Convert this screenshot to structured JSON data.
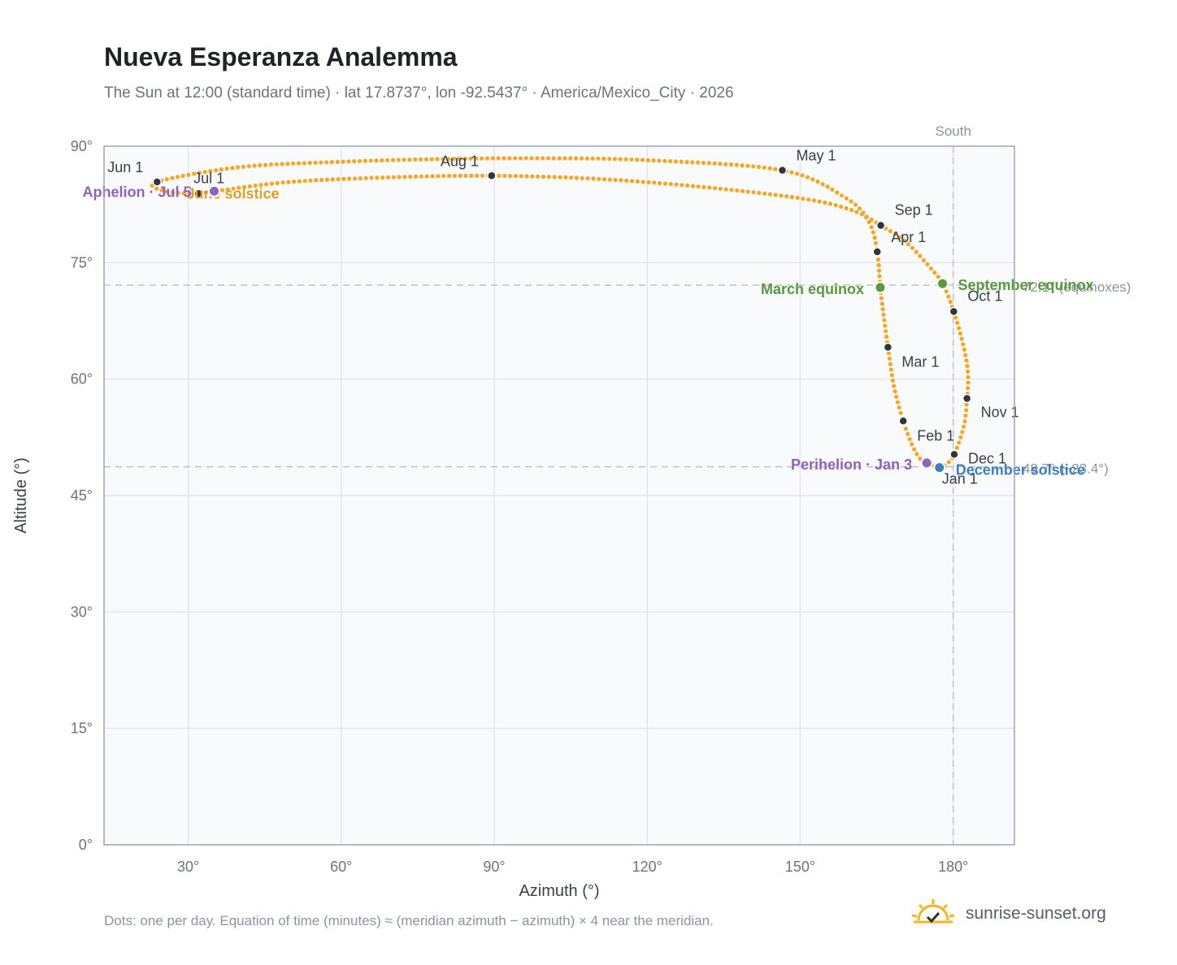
{
  "title": "Nueva Esperanza Analemma",
  "subtitle": "The Sun at 12:00 (standard time) · lat 17.8737°, lon -92.5437° · America/Mexico_City · 2026",
  "footnote": "Dots: one per day. Equation of time (minutes) ≈ (meridian azimuth − azimuth) × 4 near the meridian.",
  "brand": {
    "text": "sunrise-sunset.org",
    "icon": "sun-check-icon"
  },
  "chart_data": {
    "type": "scatter",
    "xlabel": "Azimuth (°)",
    "ylabel": "Altitude (°)",
    "xlim": [
      13.5,
      192
    ],
    "ylim": [
      0,
      90
    ],
    "xticks": [
      30,
      60,
      90,
      120,
      150,
      180
    ],
    "yticks": [
      0,
      15,
      30,
      45,
      60,
      75,
      90
    ],
    "xtick_labels": [
      "30°",
      "60°",
      "90°",
      "120°",
      "150°",
      "180°"
    ],
    "ytick_labels": [
      "0°",
      "15°",
      "30°",
      "45°",
      "60°",
      "75°",
      "90°"
    ],
    "grid": true,
    "colors": {
      "path": "#f5a623",
      "month": "#2f353d",
      "equinox": "#5a9a3a",
      "solstice_dec": "#3d7fc1",
      "solstice_jun": "#d7a12a",
      "apsis": "#8e63b8",
      "refline": "#b8c6d2",
      "plot_bg": "#f8fafc",
      "frame": "#9aa7b4"
    },
    "reference_lines": [
      {
        "axis": "x",
        "value": 180,
        "label": "South"
      },
      {
        "axis": "y",
        "value": 72.1,
        "label": "72.1° (equinoxes)"
      },
      {
        "axis": "y",
        "value": 48.7,
        "label": "48.7° (−23.4°)"
      }
    ],
    "month_markers": [
      {
        "label": "Jan 1",
        "az": 177.3,
        "alt": 48.6
      },
      {
        "label": "Feb 1",
        "az": 170.2,
        "alt": 54.6
      },
      {
        "label": "Mar 1",
        "az": 167.2,
        "alt": 64.1
      },
      {
        "label": "Apr 1",
        "az": 165.1,
        "alt": 76.4
      },
      {
        "label": "May 1",
        "az": 146.5,
        "alt": 86.9
      },
      {
        "label": "Jun 1",
        "az": 23.9,
        "alt": 85.4
      },
      {
        "label": "Jul 1",
        "az": 32.0,
        "alt": 83.9
      },
      {
        "label": "Aug 1",
        "az": 89.5,
        "alt": 86.2
      },
      {
        "label": "Sep 1",
        "az": 165.8,
        "alt": 79.8
      },
      {
        "label": "Oct 1",
        "az": 180.1,
        "alt": 68.7
      },
      {
        "label": "Nov 1",
        "az": 182.7,
        "alt": 57.5
      },
      {
        "label": "Dec 1",
        "az": 180.2,
        "alt": 50.3
      }
    ],
    "events": [
      {
        "label": "March equinox",
        "az": 165.7,
        "alt": 71.8,
        "kind": "equinox"
      },
      {
        "label": "September equinox",
        "az": 177.9,
        "alt": 72.3,
        "kind": "equinox"
      },
      {
        "label": "June solstice",
        "az": 35.1,
        "alt": 84.2,
        "kind": "solstice_jun"
      },
      {
        "label": "December solstice",
        "az": 177.3,
        "alt": 48.6,
        "kind": "solstice_dec"
      },
      {
        "label": "Aphelion · Jul 5",
        "az": 35.1,
        "alt": 84.2,
        "kind": "apsis"
      },
      {
        "label": "Perihelion · Jan 3",
        "az": 174.8,
        "alt": 49.2,
        "kind": "apsis"
      }
    ],
    "path_anchors": [
      [
        177.3,
        48.6
      ],
      [
        176.2,
        48.8
      ],
      [
        174.3,
        49.2
      ],
      [
        172.3,
        51.0
      ],
      [
        170.2,
        54.6
      ],
      [
        168.4,
        59.0
      ],
      [
        167.2,
        64.1
      ],
      [
        166.3,
        68.5
      ],
      [
        165.7,
        71.8
      ],
      [
        165.1,
        76.4
      ],
      [
        163.5,
        80.2
      ],
      [
        159.0,
        83.3
      ],
      [
        146.5,
        86.9
      ],
      [
        120.0,
        88.2
      ],
      [
        100.0,
        88.45
      ],
      [
        80.0,
        88.35
      ],
      [
        60.0,
        88.0
      ],
      [
        40.0,
        87.3
      ],
      [
        23.9,
        85.4
      ],
      [
        25.5,
        84.2
      ],
      [
        32.0,
        83.9
      ],
      [
        35.1,
        84.2
      ],
      [
        50.0,
        85.4
      ],
      [
        70.0,
        86.0
      ],
      [
        89.5,
        86.2
      ],
      [
        110.0,
        85.8
      ],
      [
        130.0,
        84.8
      ],
      [
        150.0,
        83.3
      ],
      [
        160.0,
        81.8
      ],
      [
        165.8,
        79.8
      ],
      [
        171.0,
        77.5
      ],
      [
        175.3,
        74.5
      ],
      [
        177.9,
        72.3
      ],
      [
        180.1,
        68.7
      ],
      [
        182.1,
        64.0
      ],
      [
        182.9,
        60.5
      ],
      [
        182.7,
        57.5
      ],
      [
        182.1,
        54.0
      ],
      [
        180.2,
        50.3
      ],
      [
        178.6,
        49.0
      ],
      [
        177.3,
        48.6
      ]
    ]
  }
}
